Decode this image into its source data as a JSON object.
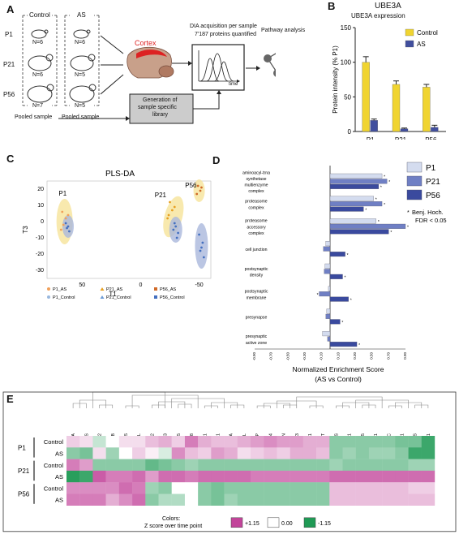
{
  "panels": {
    "A": {
      "letter": "A",
      "col_control": "Control",
      "col_as": "AS",
      "rows": [
        {
          "label": "P1",
          "n_control": "N=6",
          "n_as": "N=6"
        },
        {
          "label": "P21",
          "n_control": "N=6",
          "n_as": "N=5"
        },
        {
          "label": "P56",
          "n_control": "N=7",
          "n_as": "N=5"
        }
      ],
      "pooled_control": "Pooled sample",
      "pooled_as": "Pooled sample",
      "cortex": "Cortex",
      "dia_line1": "DIA acquisition per sample",
      "dia_line2": "7'187 proteins quantified",
      "time": "time",
      "pathway": "Pathway analysis",
      "library_line1": "Generation of",
      "library_line2": "sample specific",
      "library_line3": "library"
    },
    "B": {
      "letter": "B",
      "chart_data": {
        "type": "bar",
        "title": "UBE3A",
        "subtitle": "UBE3A expression",
        "ylabel": "Protein intensity (% P1)",
        "categories": [
          "P1",
          "P21",
          "P56"
        ],
        "ylim": [
          0,
          150
        ],
        "yticks": [
          "0",
          "50",
          "100",
          "150"
        ],
        "series": [
          {
            "name": "Control",
            "values": [
              100,
              68,
              64
            ],
            "errors": [
              8,
              5,
              4
            ],
            "color": "#f0d431"
          },
          {
            "name": "AS",
            "values": [
              16,
              4,
              6
            ],
            "errors": [
              2,
              1,
              3
            ],
            "color": "#414f9e"
          }
        ]
      }
    },
    "C": {
      "letter": "C",
      "title": "PLS-DA",
      "xlabel": "T1",
      "ylabel": "T3",
      "xticks": [
        "50",
        "0",
        "-50"
      ],
      "yticks": [
        "20",
        "10",
        "0",
        "-10",
        "-20",
        "-30"
      ],
      "group_labels": [
        "P1",
        "P21",
        "P56"
      ],
      "legend": [
        {
          "label": "P1_AS",
          "color": "#f0a05a",
          "shape": "circle"
        },
        {
          "label": "P21_AS",
          "color": "#e8a020",
          "shape": "triangle"
        },
        {
          "label": "P56_AS",
          "color": "#d06a28",
          "shape": "square"
        },
        {
          "label": "P1_Control",
          "color": "#9ab8de",
          "shape": "circle"
        },
        {
          "label": "P21_Control",
          "color": "#6c9bd6",
          "shape": "triangle"
        },
        {
          "label": "P56_Control",
          "color": "#4470c0",
          "shape": "square"
        }
      ]
    },
    "D": {
      "letter": "D",
      "chart_data": {
        "type": "bar",
        "orientation": "horizontal",
        "xlabel": "Normalized Enrichment Score",
        "xlabel2": "(AS vs Control)",
        "xlim": [
          -0.9,
          0.9
        ],
        "xticks": [
          "-0.90",
          "-0.70",
          "-0.50",
          "-0.30",
          "-0.10",
          "0.10",
          "0.30",
          "0.50",
          "0.70",
          "0.90"
        ],
        "categories": [
          [
            "aminoacyl-trna",
            "synthetase",
            "multienzyme",
            "complex"
          ],
          [
            "proteasome",
            "complex"
          ],
          [
            "proteasome",
            "accessory",
            "complex"
          ],
          [
            "cell junction"
          ],
          [
            "postsynaptic",
            "density"
          ],
          [
            "postsynaptic",
            "membrane"
          ],
          [
            "presynapse"
          ],
          [
            "presynaptic",
            "active zone"
          ]
        ],
        "series": [
          {
            "name": "P1",
            "color": "#d4dcef",
            "values": [
              0.62,
              0.52,
              0.55,
              -0.05,
              -0.06,
              -0.02,
              -0.04,
              -0.09
            ]
          },
          {
            "name": "P21",
            "color": "#6f7fc4",
            "values": [
              0.68,
              0.62,
              0.9,
              -0.08,
              -0.07,
              -0.13,
              -0.05,
              -0.03
            ]
          },
          {
            "name": "P56",
            "color": "#3a4a9e",
            "values": [
              0.58,
              0.4,
              0.7,
              0.18,
              0.15,
              0.22,
              0.12,
              0.32
            ]
          }
        ],
        "significance_note_line1": "Benj. Hoch.",
        "significance_note_line2": "FDR < 0.05",
        "star": "*"
      }
    },
    "E": {
      "letter": "E",
      "chart_data": {
        "type": "heatmap",
        "columns": [
          "UBE3A",
          "YARS",
          "OTUB2",
          "CYGB",
          "PLEKHG5",
          "COIL",
          "KLHL22",
          "PITPNM3",
          "DEPDC5",
          "COMMD8",
          "VCAM1",
          "PCM1",
          "NT5C3A",
          "DUS3L",
          "SEC23IP",
          "GOLGA4",
          "TSN",
          "PSME3",
          "BANF1",
          "TKT",
          "MIOS",
          "PSMD11",
          "UCHL5",
          "BNIP1",
          "KIF3C",
          "GRASP1",
          "QARS",
          "UBLCP1"
        ],
        "groups": [
          {
            "label": "P1",
            "rows": [
              "Control",
              "AS"
            ]
          },
          {
            "label": "P21",
            "rows": [
              "Control",
              "AS"
            ]
          },
          {
            "label": "P56",
            "rows": [
              "Control",
              "AS"
            ]
          }
        ],
        "values": [
          [
            0.3,
            0.2,
            -0.3,
            0.0,
            0.2,
            0.2,
            0.4,
            0.5,
            0.3,
            0.8,
            0.5,
            0.4,
            0.4,
            0.5,
            0.6,
            0.7,
            0.6,
            0.6,
            0.5,
            0.5,
            -0.6,
            -0.6,
            -0.6,
            -0.6,
            -0.6,
            -0.7,
            -0.7,
            -1.0
          ],
          [
            -0.6,
            -0.7,
            0.2,
            -0.5,
            0.0,
            0.3,
            0.1,
            -0.2,
            0.7,
            0.4,
            0.3,
            0.6,
            0.5,
            0.2,
            0.3,
            0.4,
            0.3,
            0.5,
            0.5,
            0.4,
            -0.6,
            -0.5,
            -0.6,
            -0.5,
            -0.5,
            -0.6,
            -1.0,
            -1.0
          ],
          [
            0.8,
            0.6,
            -0.6,
            -0.6,
            -0.6,
            -0.6,
            -0.8,
            -0.7,
            -0.6,
            -0.5,
            -0.6,
            -0.6,
            -0.6,
            -0.6,
            -0.6,
            -0.6,
            -0.6,
            -0.6,
            -0.6,
            -0.6,
            -0.5,
            -0.6,
            -0.6,
            -0.6,
            -0.6,
            -0.6,
            -0.5,
            -0.5
          ],
          [
            -1.1,
            -1.0,
            1.0,
            0.8,
            0.8,
            0.9,
            0.6,
            0.9,
            0.9,
            0.8,
            0.9,
            0.9,
            0.9,
            0.9,
            0.8,
            0.8,
            0.8,
            0.8,
            0.8,
            0.8,
            0.9,
            0.9,
            0.9,
            0.9,
            0.9,
            0.9,
            0.9,
            0.9
          ],
          [
            0.7,
            0.7,
            0.7,
            0.7,
            0.9,
            0.8,
            -0.5,
            -0.6,
            0.0,
            0.0,
            -0.6,
            -0.7,
            -0.6,
            -0.6,
            -0.6,
            -0.6,
            -0.6,
            -0.6,
            -0.6,
            -0.6,
            0.4,
            0.4,
            0.4,
            0.4,
            0.4,
            0.4,
            0.3,
            0.3
          ],
          [
            0.8,
            0.8,
            0.8,
            0.5,
            0.7,
            0.9,
            -0.6,
            -0.4,
            -0.4,
            0.0,
            -0.6,
            -0.7,
            -0.5,
            -0.6,
            -0.6,
            -0.6,
            -0.6,
            -0.6,
            -0.6,
            -0.6,
            0.4,
            0.4,
            0.4,
            0.4,
            0.4,
            0.4,
            0.4,
            0.4
          ]
        ],
        "colors_label": "Colors:",
        "scale_label": "Z score over time point",
        "legend": [
          {
            "label": "+1.15",
            "color": "#c2449a"
          },
          {
            "label": "0.00",
            "color": "#ffffff"
          },
          {
            "label": "-1.15",
            "color": "#1f9a55"
          }
        ]
      }
    }
  }
}
